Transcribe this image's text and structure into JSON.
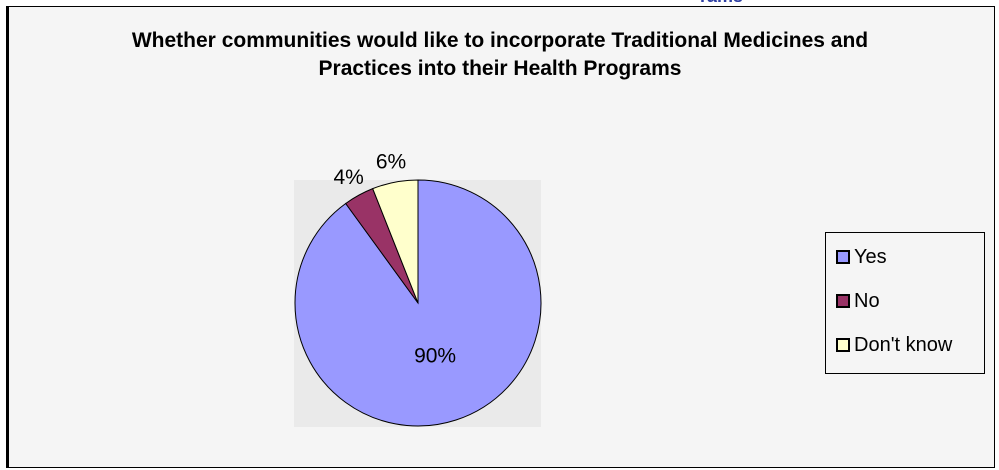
{
  "clipped_heading": "rams",
  "chart_data": {
    "type": "pie",
    "title": "Whether communities would like to incorporate Traditional Medicines and Practices into their Health Programs",
    "categories": [
      "Yes",
      "No",
      "Don't know"
    ],
    "values": [
      90,
      4,
      6
    ],
    "data_labels": [
      "90%",
      "4%",
      "6%"
    ],
    "colors": [
      "#9999ff",
      "#993366",
      "#ffffcc"
    ],
    "plot_area_color": "#eaeaea",
    "legend_position": "right"
  }
}
